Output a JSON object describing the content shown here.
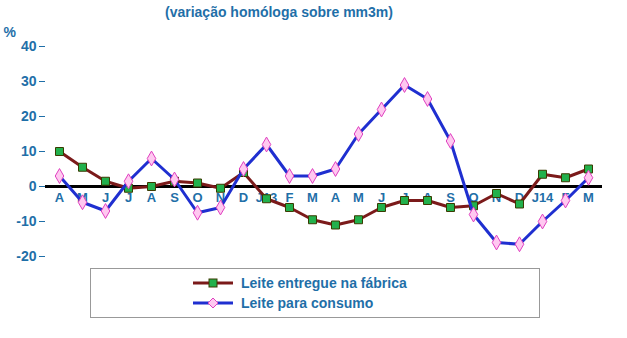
{
  "chart_data": {
    "type": "line",
    "subtitle": "(variação homóloga sobre mm3m)",
    "ylabel": "%",
    "categories": [
      "A",
      "M",
      "J",
      "J",
      "A",
      "S",
      "O",
      "N",
      "D",
      "J13",
      "F",
      "M",
      "A",
      "M",
      "J",
      "J",
      "A",
      "S",
      "O",
      "N",
      "D",
      "J14",
      "F",
      "M"
    ],
    "series": [
      {
        "name": "Leite entregue na fábrica",
        "color": "#7b1a1a",
        "marker": "square",
        "values": [
          10,
          5.5,
          1.5,
          -0.5,
          0,
          1.5,
          1,
          -0.5,
          4,
          -3.5,
          -6,
          -9.5,
          -11,
          -9.5,
          -6,
          -4,
          -4,
          -6,
          -5.5,
          -2,
          -5,
          3.5,
          2.5,
          5
        ]
      },
      {
        "name": "Leite para consumo",
        "color": "#1f2fd0",
        "marker": "diamond",
        "values": [
          3,
          -4.5,
          -7,
          1.5,
          8,
          2,
          -7.5,
          -6,
          5,
          12,
          3,
          3,
          5,
          15,
          22,
          29,
          25,
          13,
          -8,
          -16,
          -16.5,
          -10,
          -4,
          2.5
        ]
      }
    ],
    "ylim": [
      -20,
      40
    ],
    "yticks": [
      -20,
      -10,
      0,
      10,
      20,
      30,
      40
    ],
    "grid": false,
    "legend": "bottom"
  }
}
